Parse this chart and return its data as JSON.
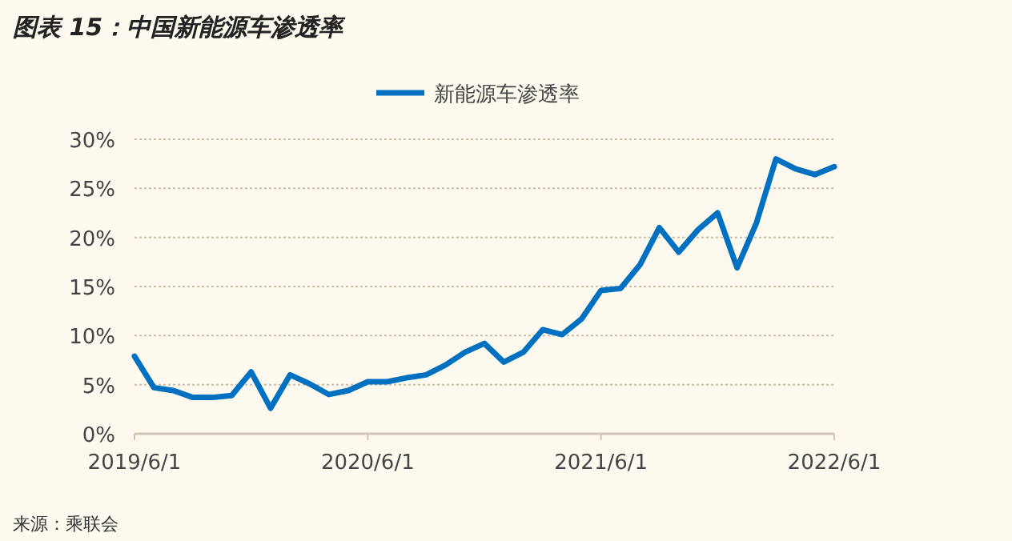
{
  "chart_data": {
    "type": "line",
    "title": "图表 15：中国新能源车渗透率",
    "annotations": [
      "来源：乘联会"
    ],
    "x": [
      "2019-06",
      "2019-07",
      "2019-08",
      "2019-09",
      "2019-10",
      "2019-11",
      "2019-12",
      "2020-01",
      "2020-02",
      "2020-03",
      "2020-04",
      "2020-05",
      "2020-06",
      "2020-07",
      "2020-08",
      "2020-09",
      "2020-10",
      "2020-11",
      "2020-12",
      "2021-01",
      "2021-02",
      "2021-03",
      "2021-04",
      "2021-05",
      "2021-06",
      "2021-07",
      "2021-08",
      "2021-09",
      "2021-10",
      "2021-11",
      "2021-12",
      "2022-01",
      "2022-02",
      "2022-03",
      "2022-04",
      "2022-05",
      "2022-06"
    ],
    "series": [
      {
        "name": "新能源车渗透率",
        "color": "#0070c0",
        "values": [
          7.9,
          4.7,
          4.4,
          3.7,
          3.7,
          3.9,
          6.3,
          2.6,
          6.0,
          5.1,
          4.0,
          4.4,
          5.3,
          5.3,
          5.7,
          6.0,
          7.0,
          8.3,
          9.2,
          7.3,
          8.3,
          10.6,
          10.1,
          11.7,
          14.6,
          14.8,
          17.2,
          21.0,
          18.5,
          20.8,
          22.5,
          16.9,
          21.5,
          28.0,
          27.0,
          26.4,
          27.2
        ]
      }
    ],
    "xlim": [
      "2019-06-01",
      "2022-06-01"
    ],
    "xticks": [
      {
        "value": "2019-06-01",
        "label": "2019/6/1"
      },
      {
        "value": "2020-06-01",
        "label": "2020/6/1"
      },
      {
        "value": "2021-06-01",
        "label": "2021/6/1"
      },
      {
        "value": "2022-06-01",
        "label": "2022/6/1"
      }
    ],
    "ylim": [
      0,
      30
    ],
    "yticks": [
      {
        "value": 0,
        "label": "0%"
      },
      {
        "value": 5,
        "label": "5%"
      },
      {
        "value": 10,
        "label": "10%"
      },
      {
        "value": 15,
        "label": "15%"
      },
      {
        "value": 20,
        "label": "20%"
      },
      {
        "value": 25,
        "label": "25%"
      },
      {
        "value": 30,
        "label": "30%"
      }
    ],
    "grid": "y",
    "legend": "top",
    "marker": "none",
    "line_style": "solid"
  }
}
